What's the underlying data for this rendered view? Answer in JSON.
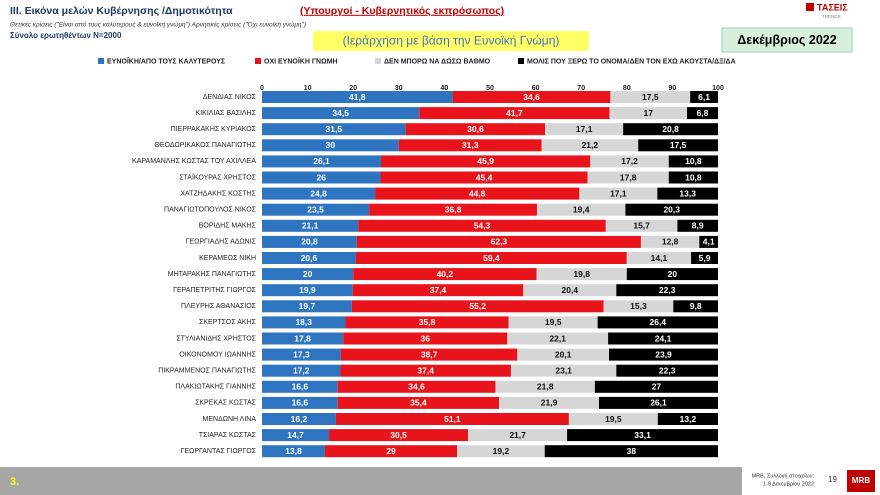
{
  "chart_data": {
    "type": "stacked-bar-horizontal",
    "title": "III.  Εικόνα μελών Κυβέρνησης /Δημοτικότητα",
    "title_highlight": "(Υπουργοί - Κυβερνητικός εκπρόσωπος)",
    "subtitle": "Θετικές κρίσεις (\"Είναι από τους καλύτερους & ευνοϊκή γνώμη\")   Αρνητικές κρίσεις (\"Όχι ευνοϊκή γνώμη\")",
    "sample_note": "Σύνολο ερωτηθέντων Ν=2000",
    "sort_note": "(Ιεράρχηση με βάση την Ευνοϊκή Γνώμη)",
    "period": "Δεκέμβριος 2022",
    "categories": [
      "ΔΕΝΔΙΑΣ ΝΙΚΟΣ",
      "ΚΙΚΙΛΙΑΣ ΒΑΣΙΛΗΣ",
      "ΠΙΕΡΡΑΚΑΚΗΣ ΚΥΡΙΑΚΟΣ",
      "ΘΕΟΔΩΡΙΚΑΚΟΣ ΠΑΝΑΓΙΩΤΗΣ",
      "ΚΑΡΑΜΑΝΛΗΣ ΚΩΣΤΑΣ ΤΟΥ ΑΧΙΛΛΕΑ",
      "ΣΤΑΪΚΟΥΡΑΣ ΧΡΗΣΤΟΣ",
      "ΧΑΤΖΗΔΑΚΗΣ ΚΩΣΤΗΣ",
      "ΠΑΝΑΓΙΩΤΟΠΟΥΛΟΣ ΝΙΚΟΣ",
      "ΒΟΡΙΔΗΣ ΜΑΚΗΣ",
      "ΓΕΩΡΓΙΑΔΗΣ ΑΔΩΝΙΣ",
      "ΚΕΡΑΜΕΩΣ ΝΙΚΗ",
      "ΜΗΤΑΡΑΚΗΣ ΠΑΝΑΓΙΩΤΗΣ",
      "ΓΕΡΑΠΕΤΡΙΤΗΣ ΓΙΩΡΓΟΣ",
      "ΠΛΕΥΡΗΣ ΑΘΑΝΑΣΙΟΣ",
      "ΣΚΕΡΤΣΟΣ ΑΚΗΣ",
      "ΣΤΥΛΙΑΝΙΔΗΣ ΧΡΗΣΤΟΣ",
      "ΟΙΚΟΝΟΜΟΥ ΙΩΑΝΝΗΣ",
      "ΠΙΚΡΑΜΜΕΝΟΣ ΠΑΝΑΓΙΩΤΗΣ",
      "ΠΛΑΚΙΩΤΑΚΗΣ ΓΙΑΝΝΗΣ",
      "ΣΚΡΕΚΑΣ ΚΩΣΤΑΣ",
      "ΜΕΝΔΩΝΗ ΛΙΝΑ",
      "ΤΣΙΑΡΑΣ ΚΩΣΤΑΣ",
      "ΓΕΩΡΓΑΝΤΑΣ ΓΙΩΡΓΟΣ"
    ],
    "series": [
      {
        "name": "ΕΥΝΟΪΚΗ/ΑΠΟ ΤΟΥΣ ΚΑΛΥΤΕΡΟΥΣ",
        "color": "#2f74c0",
        "label_color": "#ffffff",
        "values": [
          41.8,
          34.5,
          31.5,
          30,
          26.1,
          26,
          24.8,
          23.5,
          21.1,
          20.8,
          20.6,
          20,
          19.9,
          19.7,
          18.3,
          17.8,
          17.3,
          17.2,
          16.6,
          16.6,
          16.2,
          14.7,
          13.8
        ],
        "value_labels": [
          "41,8",
          "34,5",
          "31,5",
          "30",
          "26,1",
          "26",
          "24,8",
          "23,5",
          "21,1",
          "20,8",
          "20,6",
          "20",
          "19,9",
          "19,7",
          "18,3",
          "17,8",
          "17,3",
          "17,2",
          "16,6",
          "16,6",
          "16,2",
          "14,7",
          "13,8"
        ]
      },
      {
        "name": "ΟΧΙ ΕΥΝΟΪΚΗ ΓΝΩΜΗ",
        "color": "#e8131b",
        "label_color": "#ffffff",
        "values": [
          34.6,
          41.7,
          30.6,
          31.3,
          45.9,
          45.4,
          44.8,
          36.8,
          54.3,
          62.3,
          59.4,
          40.2,
          37.4,
          55.2,
          35.8,
          36,
          38.7,
          37.4,
          34.6,
          35.4,
          51.1,
          30.5,
          29
        ],
        "value_labels": [
          "34,6",
          "41,7",
          "30,6",
          "31,3",
          "45,9",
          "45,4",
          "44,8",
          "36,8",
          "54,3",
          "62,3",
          "59,4",
          "40,2",
          "37,4",
          "55,2",
          "35,8",
          "36",
          "38,7",
          "37,4",
          "34,6",
          "35,4",
          "51,1",
          "30,5",
          "29"
        ]
      },
      {
        "name": "ΔΕΝ ΜΠΟΡΩ ΝΑ ΔΩΣΩ ΒΑΘΜΟ",
        "color": "#d6d6d6",
        "label_color": "#111111",
        "values": [
          17.5,
          17,
          17.1,
          21.2,
          17.2,
          17.8,
          17.1,
          19.4,
          15.7,
          12.8,
          14.1,
          19.8,
          20.4,
          15.3,
          19.5,
          22.1,
          20.1,
          23.1,
          21.8,
          21.9,
          19.5,
          21.7,
          19.2
        ],
        "value_labels": [
          "17,5",
          "17",
          "17,1",
          "21,2",
          "17,2",
          "17,8",
          "17,1",
          "19,4",
          "15,7",
          "12,8",
          "14,1",
          "19,8",
          "20,4",
          "15,3",
          "19,5",
          "22,1",
          "20,1",
          "23,1",
          "21,8",
          "21,9",
          "19,5",
          "21,7",
          "19,2"
        ]
      },
      {
        "name": "ΜΟΛΙΣ ΠΟΥ ΞΕΡΩ ΤΟ ΟΝΟΜΑ/ΔΕΝ ΤΟΝ ΕΧΩ ΑΚΟΥΣΤΑ/ΔΞ/ΔΑ",
        "color": "#000000",
        "label_color": "#ffffff",
        "values": [
          6.1,
          6.8,
          20.8,
          17.5,
          10.8,
          10.8,
          13.3,
          20.3,
          8.9,
          4.1,
          5.9,
          20,
          22.3,
          9.8,
          26.4,
          24.1,
          23.9,
          22.3,
          27,
          26.1,
          13.2,
          33.1,
          38
        ],
        "value_labels": [
          "6,1",
          "6,8",
          "20,8",
          "17,5",
          "10,8",
          "10,8",
          "13,3",
          "20,3",
          "8,9",
          "4,1",
          "5,9",
          "20",
          "22,3",
          "9,8",
          "26,4",
          "24,1",
          "23,9",
          "22,3",
          "27",
          "26,1",
          "13,2",
          "33,1",
          "38"
        ]
      }
    ],
    "xlim": [
      0,
      100
    ],
    "xticks": [
      0,
      10,
      20,
      30,
      40,
      50,
      60,
      70,
      80,
      90,
      100
    ]
  },
  "logo": {
    "name": "ΤΑΣΕΙΣ",
    "sub": "TRENDS"
  },
  "footer": {
    "page": "3.",
    "source": "MRB, Συλλογή στοιχείων:",
    "dates": "1-9 Δεκεμβρίου 2022",
    "slide": "19",
    "brand": "MRB"
  }
}
